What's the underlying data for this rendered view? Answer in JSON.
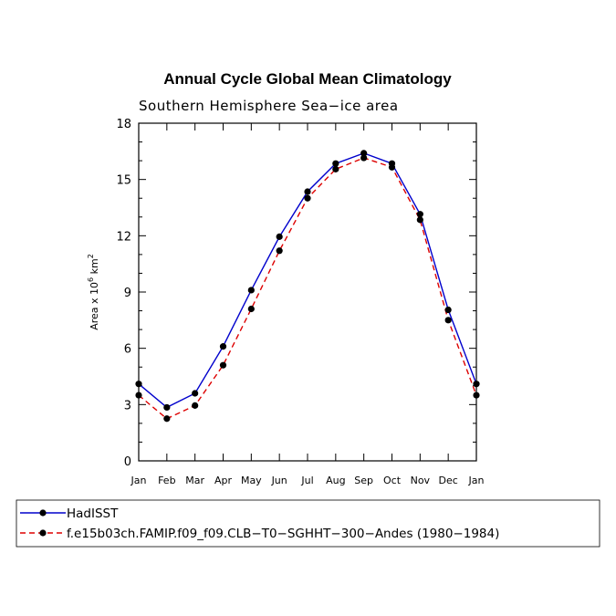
{
  "chart_data": {
    "type": "line",
    "title": "Annual Cycle Global Mean Climatology",
    "subtitle": "Southern Hemisphere Sea−ice area",
    "ylabel": "Area x 10",
    "ylabel_exp": "6",
    "ylabel_unit": " km",
    "ylabel_unit_exp": "2",
    "ylim": [
      0,
      18
    ],
    "yticks": [
      0,
      3,
      6,
      9,
      12,
      15,
      18
    ],
    "categories": [
      "Jan",
      "Feb",
      "Mar",
      "Apr",
      "May",
      "Jun",
      "Jul",
      "Aug",
      "Sep",
      "Oct",
      "Nov",
      "Dec",
      "Jan"
    ],
    "series": [
      {
        "name": "HadISST",
        "color": "#0000cc",
        "dash": "solid",
        "values": [
          4.1,
          2.85,
          3.6,
          6.1,
          9.1,
          11.95,
          14.35,
          15.85,
          16.4,
          15.85,
          13.15,
          8.05,
          4.1
        ]
      },
      {
        "name": "f.e15b03ch.FAMIP.f09_f09.CLB−T0−SGHHT−300−Andes (1980−1984)",
        "color": "#dd0000",
        "dash": "dashed",
        "values": [
          3.5,
          2.25,
          2.95,
          5.1,
          8.1,
          11.2,
          14.0,
          15.55,
          16.15,
          15.65,
          12.85,
          7.5,
          3.5
        ]
      }
    ]
  }
}
